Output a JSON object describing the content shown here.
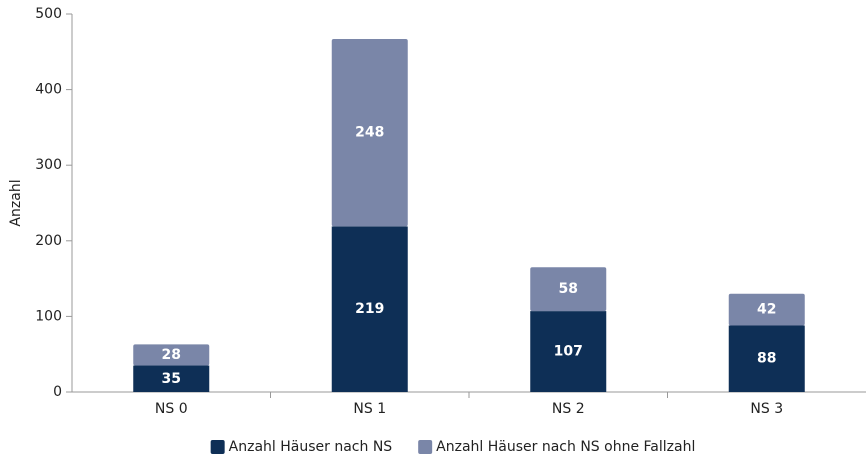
{
  "chart_data": {
    "type": "stacked_bar",
    "y_label": "Anzahl",
    "categories": [
      "NS 0",
      "NS 1",
      "NS 2",
      "NS 3"
    ],
    "series": [
      {
        "name": "Anzahl Häuser nach NS",
        "color": "#0e2f56",
        "values": [
          35,
          219,
          107,
          88
        ]
      },
      {
        "name": "Anzahl Häuser nach NS ohne Fallzahl",
        "color": "#7a86a8",
        "values": [
          28,
          248,
          58,
          42
        ]
      }
    ],
    "ylim": [
      0,
      500
    ],
    "yticks": [
      0,
      100,
      200,
      300,
      400,
      500
    ],
    "grid": false,
    "legend": "bottom"
  }
}
